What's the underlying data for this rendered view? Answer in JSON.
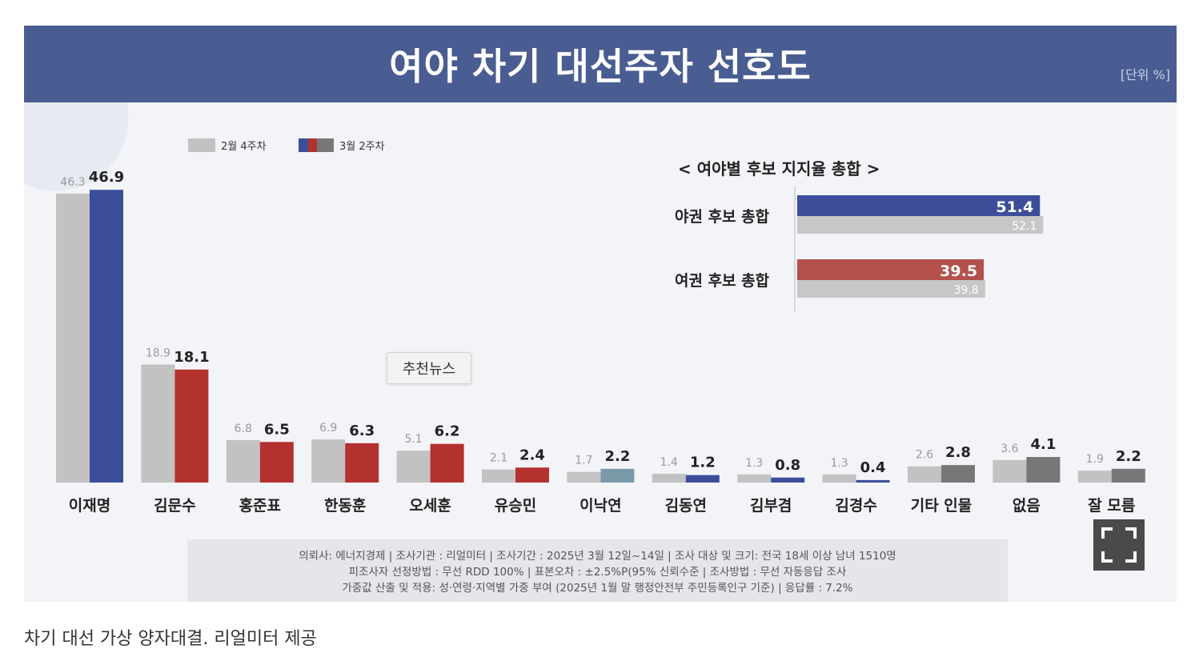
{
  "header": {
    "title": "여야 차기 대선주자 선호도",
    "unit": "[단위 %]"
  },
  "legend": {
    "prev": "2월 4주차",
    "curr": "3월 2주차"
  },
  "chart_data": [
    {
      "type": "bar",
      "categories": [
        "이재명",
        "김문수",
        "홍준표",
        "한동훈",
        "오세훈",
        "유승민",
        "이낙연",
        "김동연",
        "김부겸",
        "김경수",
        "기타 인물",
        "없음",
        "잘 모름"
      ],
      "series": [
        {
          "name": "2월 4주차",
          "values": [
            46.3,
            18.9,
            6.8,
            6.9,
            5.1,
            2.1,
            1.7,
            1.4,
            1.3,
            1.3,
            2.6,
            3.6,
            1.9
          ]
        },
        {
          "name": "3월 2주차",
          "values": [
            46.9,
            18.1,
            6.5,
            6.3,
            6.2,
            2.4,
            2.2,
            1.2,
            0.8,
            0.4,
            2.8,
            4.1,
            2.2
          ]
        }
      ],
      "bar_colors": [
        "#3c4e9a",
        "#b3312f",
        "#b3312f",
        "#b3312f",
        "#b3312f",
        "#b3312f",
        "#7a9aa9",
        "#3c4e9a",
        "#3c4e9a",
        "#3c4e9a",
        "#777777",
        "#777777",
        "#777777"
      ],
      "prev_color": "#c2c2c2",
      "legend_position": "top-left"
    },
    {
      "type": "bar",
      "orientation": "horizontal",
      "title": "< 여야별 후보 지지율 총합 >",
      "categories": [
        "야권 후보 총합",
        "여권 후보 총합"
      ],
      "series": [
        {
          "name": "3월 2주차",
          "values": [
            51.4,
            39.5
          ]
        },
        {
          "name": "2월 4주차",
          "values": [
            52.1,
            39.8
          ]
        }
      ],
      "bar_colors": [
        "#3c4e9a",
        "#b4514c"
      ],
      "prev_color": "#c7c7c7"
    }
  ],
  "footnote": {
    "line1": "의뢰사: 에너지경제 | 조사기관 : 리얼미터  |  조사기간 : 2025년 3월 12일~14일 | 조사 대상 및 크기: 전국 18세 이상 남녀 1510명",
    "line2": "피조사자 선정방법 : 무선 RDD 100% | 표본오차 : ±2.5%P(95% 신뢰수준 | 조사방법 : 무선 자동응답 조사",
    "line3": "가중값 산출 및 적용: 성·연령·지역별 가중 부여 (2025년 1월 말 행정안전부 주민등록인구 기준) | 응답률 : 7.2%"
  },
  "badge": "추천뉴스",
  "caption": "차기 대선 가상 양자대결. 리얼미터 제공"
}
